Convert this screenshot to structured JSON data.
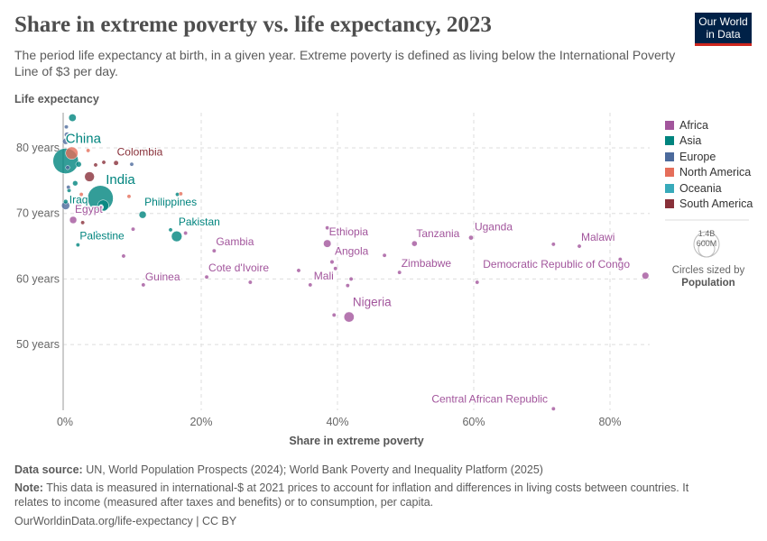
{
  "header": {
    "title": "Share in extreme poverty vs. life expectancy, 2023",
    "subtitle": "The period life expectancy at birth, in a given year. Extreme poverty is defined as living below the International Poverty Line of $3 per day.",
    "logo": "Our World in Data"
  },
  "footer": {
    "source_label": "Data source:",
    "source": " UN, World Population Prospects (2024); World Bank Poverty and Inequality Platform (2025)",
    "note_label": "Note:",
    "note": " This data is measured in international-$ at 2021 prices to account for inflation and differences in living costs between countries. It relates to income (measured after taxes and benefits) or to consumption, per capita.",
    "url": "OurWorldinData.org/life-expectancy | CC BY"
  },
  "legend": {
    "size_title": "Circles sized by",
    "size_var": "Population",
    "size_big": "1.4B",
    "size_small": "600M"
  },
  "chart_data": {
    "type": "scatter",
    "xlabel": "Share in extreme poverty",
    "ylabel": "Life expectancy",
    "xlim": [
      0,
      85
    ],
    "ylim": [
      40,
      86
    ],
    "xticks": [
      {
        "v": 0,
        "label": "0%"
      },
      {
        "v": 20,
        "label": "20%"
      },
      {
        "v": 40,
        "label": "40%"
      },
      {
        "v": 60,
        "label": "60%"
      },
      {
        "v": 80,
        "label": "80%"
      }
    ],
    "yticks": [
      {
        "v": 50,
        "label": "50 years"
      },
      {
        "v": 60,
        "label": "60 years"
      },
      {
        "v": 70,
        "label": "70 years"
      },
      {
        "v": 80,
        "label": "80 years"
      }
    ],
    "grid": true,
    "legend_position": "right",
    "size_by": "population",
    "continents": [
      {
        "name": "Africa",
        "color": "#a2559c"
      },
      {
        "name": "Asia",
        "color": "#00847e"
      },
      {
        "name": "Europe",
        "color": "#4c6a9c"
      },
      {
        "name": "North America",
        "color": "#e56e5a"
      },
      {
        "name": "Oceania",
        "color": "#38aaba"
      },
      {
        "name": "South America",
        "color": "#883039"
      }
    ],
    "points": [
      {
        "label": "China",
        "c": "Asia",
        "x": 0.1,
        "y": 78,
        "pop": 1410
      },
      {
        "label": "India",
        "c": "Asia",
        "x": 5.2,
        "y": 72.3,
        "pop": 1440
      },
      {
        "label": "Nigeria",
        "c": "Africa",
        "x": 41.7,
        "y": 54.2,
        "pop": 228
      },
      {
        "label": "Pakistan",
        "c": "Asia",
        "x": 16.4,
        "y": 66.5,
        "pop": 245
      },
      {
        "label": "Philippines",
        "c": "Asia",
        "x": 11.4,
        "y": 69.8,
        "pop": 115
      },
      {
        "label": "Ethiopia",
        "c": "Africa",
        "x": 38.5,
        "y": 65.4,
        "pop": 128
      },
      {
        "label": "Tanzania",
        "c": "Africa",
        "x": 51.3,
        "y": 65.4,
        "pop": 67
      },
      {
        "label": "Uganda",
        "c": "Africa",
        "x": 59.6,
        "y": 66.3,
        "pop": 49
      },
      {
        "label": "Malawi",
        "c": "Africa",
        "x": 75.5,
        "y": 65,
        "pop": 21
      },
      {
        "label": "Democratic Republic of Congo",
        "c": "Africa",
        "x": 85.2,
        "y": 60.5,
        "pop": 105
      },
      {
        "label": "Zimbabwe",
        "c": "Africa",
        "x": 49.1,
        "y": 61,
        "pop": 16
      },
      {
        "label": "Angola",
        "c": "Africa",
        "x": 39.2,
        "y": 62.6,
        "pop": 37
      },
      {
        "label": "Mali",
        "c": "Africa",
        "x": 36,
        "y": 59.1,
        "pop": 23
      },
      {
        "label": "Cote d'Ivoire",
        "c": "Africa",
        "x": 20.8,
        "y": 60.3,
        "pop": 31
      },
      {
        "label": "Gambia",
        "c": "Africa",
        "x": 21.9,
        "y": 64.3,
        "pop": 3
      },
      {
        "label": "Guinea",
        "c": "Africa",
        "x": 11.5,
        "y": 59.1,
        "pop": 14
      },
      {
        "label": "Central African Republic",
        "c": "Africa",
        "x": 71.7,
        "y": 40.2,
        "pop": 5
      },
      {
        "label": "Egypt",
        "c": "Africa",
        "x": 1.2,
        "y": 69,
        "pop": 114
      },
      {
        "label": "Iraq",
        "c": "Asia",
        "x": 0.1,
        "y": 71.8,
        "pop": 45
      },
      {
        "label": "Palestine",
        "c": "Asia",
        "x": 1.9,
        "y": 65.2,
        "pop": 5
      },
      {
        "label": "Colombia",
        "c": "South America",
        "x": 7.5,
        "y": 77.7,
        "pop": 52
      },
      {
        "label": "",
        "c": "North America",
        "x": 1,
        "y": 79.2,
        "pop": 340
      },
      {
        "label": "",
        "c": "South America",
        "x": 3.6,
        "y": 75.6,
        "pop": 211
      },
      {
        "label": "",
        "c": "Asia",
        "x": 1.1,
        "y": 84.6,
        "pop": 124
      },
      {
        "label": "",
        "c": "Asia",
        "x": 5.6,
        "y": 71.2,
        "pop": 280
      },
      {
        "label": "",
        "c": "Europe",
        "x": 0.1,
        "y": 71.2,
        "pop": 145
      },
      {
        "label": "",
        "c": "Europe",
        "x": 0.3,
        "y": 82,
        "pop": 60
      },
      {
        "label": "",
        "c": "Europe",
        "x": 0.1,
        "y": 81,
        "pop": 84
      },
      {
        "label": "",
        "c": "Europe",
        "x": 0.2,
        "y": 83.2,
        "pop": 20
      },
      {
        "label": "",
        "c": "Europe",
        "x": 0.4,
        "y": 77,
        "pop": 38
      },
      {
        "label": "",
        "c": "Europe",
        "x": 0.5,
        "y": 74,
        "pop": 10
      },
      {
        "label": "",
        "c": "Asia",
        "x": 1.5,
        "y": 74.6,
        "pop": 60
      },
      {
        "label": "",
        "c": "Asia",
        "x": 2,
        "y": 77.5,
        "pop": 70
      },
      {
        "label": "",
        "c": "North America",
        "x": 3.4,
        "y": 79.6,
        "pop": 5
      },
      {
        "label": "",
        "c": "South America",
        "x": 5.7,
        "y": 77.8,
        "pop": 8
      },
      {
        "label": "",
        "c": "South America",
        "x": 4.5,
        "y": 77.4,
        "pop": 4
      },
      {
        "label": "",
        "c": "Europe",
        "x": 9.8,
        "y": 77.5,
        "pop": 3
      },
      {
        "label": "",
        "c": "North America",
        "x": 9.4,
        "y": 72.6,
        "pop": 4
      },
      {
        "label": "",
        "c": "Asia",
        "x": 16.5,
        "y": 72.9,
        "pop": 4
      },
      {
        "label": "",
        "c": "North America",
        "x": 17,
        "y": 73,
        "pop": 3
      },
      {
        "label": "",
        "c": "Africa",
        "x": 10,
        "y": 67.6,
        "pop": 4
      },
      {
        "label": "",
        "c": "Africa",
        "x": 17.7,
        "y": 67,
        "pop": 4
      },
      {
        "label": "",
        "c": "Asia",
        "x": 15.5,
        "y": 67.5,
        "pop": 3
      },
      {
        "label": "",
        "c": "Oceania",
        "x": 4.5,
        "y": 67.1,
        "pop": 2
      },
      {
        "label": "",
        "c": "Africa",
        "x": 8.6,
        "y": 63.5,
        "pop": 3
      },
      {
        "label": "",
        "c": "South America",
        "x": 2.6,
        "y": 68.6,
        "pop": 3
      },
      {
        "label": "",
        "c": "North America",
        "x": 2.4,
        "y": 72.9,
        "pop": 18
      },
      {
        "label": "",
        "c": "Asia",
        "x": 0.6,
        "y": 73.5,
        "pop": 15
      },
      {
        "label": "",
        "c": "Africa",
        "x": 38.5,
        "y": 67.8,
        "pop": 3
      },
      {
        "label": "",
        "c": "Africa",
        "x": 34.3,
        "y": 61.3,
        "pop": 4
      },
      {
        "label": "",
        "c": "Africa",
        "x": 39.7,
        "y": 61.6,
        "pop": 5
      },
      {
        "label": "",
        "c": "Africa",
        "x": 42,
        "y": 60,
        "pop": 6
      },
      {
        "label": "",
        "c": "Africa",
        "x": 41.5,
        "y": 59,
        "pop": 4
      },
      {
        "label": "",
        "c": "Africa",
        "x": 27.2,
        "y": 59.5,
        "pop": 4
      },
      {
        "label": "",
        "c": "Africa",
        "x": 46.9,
        "y": 63.6,
        "pop": 30
      },
      {
        "label": "",
        "c": "Africa",
        "x": 71.7,
        "y": 65.3,
        "pop": 5
      },
      {
        "label": "",
        "c": "Africa",
        "x": 74.2,
        "y": 62.5,
        "pop": 5
      },
      {
        "label": "",
        "c": "Africa",
        "x": 81.5,
        "y": 63,
        "pop": 8
      },
      {
        "label": "",
        "c": "Africa",
        "x": 60.5,
        "y": 59.5,
        "pop": 6
      },
      {
        "label": "",
        "c": "Africa",
        "x": 39.5,
        "y": 54.5,
        "pop": 5
      }
    ]
  }
}
